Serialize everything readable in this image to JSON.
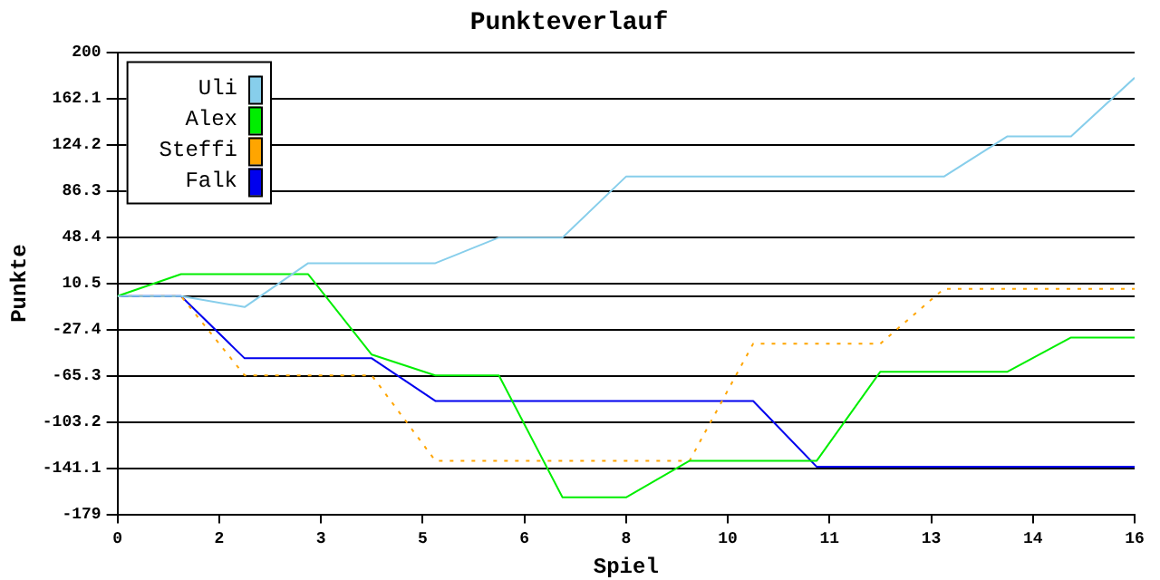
{
  "chart_data": {
    "type": "line",
    "title": "Punkteverlauf",
    "xlabel": "Spiel",
    "ylabel": "Punkte",
    "x": [
      0,
      1,
      2,
      3,
      4,
      5,
      6,
      7,
      8,
      9,
      10,
      11,
      12,
      13,
      14,
      15,
      16
    ],
    "xlim": [
      0,
      16
    ],
    "xticks": [
      0,
      {
        "value": 1.6,
        "label": "2"
      },
      {
        "value": 3.2,
        "label": "3"
      },
      {
        "value": 4.8,
        "label": "5"
      },
      {
        "value": 6.4,
        "label": "6"
      },
      8,
      {
        "value": 9.6,
        "label": "10"
      },
      {
        "value": 11.2,
        "label": "11"
      },
      {
        "value": 12.8,
        "label": "13"
      },
      {
        "value": 14.4,
        "label": "14"
      },
      16
    ],
    "ylim": [
      -179,
      200
    ],
    "yticks": [
      -179,
      -141.1,
      -103.2,
      -65.3,
      -27.4,
      10.5,
      48.4,
      86.3,
      124.2,
      162.1,
      200
    ],
    "grid": "y",
    "legend": "top left",
    "marker": "none",
    "ref_lines": [
      {
        "axis": "y",
        "value": 0,
        "color": "#000000"
      }
    ],
    "series": [
      {
        "name": "Uli",
        "color": "#87ceeb",
        "line_style": "solid",
        "values": [
          0,
          0,
          -9,
          27,
          27,
          27,
          48,
          48,
          98,
          98,
          98,
          98,
          98,
          98,
          131,
          131,
          179
        ]
      },
      {
        "name": "Alex",
        "color": "#00ee00",
        "line_style": "solid",
        "values": [
          0,
          18,
          18,
          18,
          -48,
          -65,
          -65,
          -165,
          -165,
          -135,
          -135,
          -135,
          -62,
          -62,
          -62,
          -34,
          -34
        ]
      },
      {
        "name": "Steffi",
        "color": "#ffa500",
        "line_style": "dotted",
        "values": [
          0,
          0,
          -65,
          -65,
          -65,
          -135,
          -135,
          -135,
          -135,
          -135,
          -39,
          -39,
          -39,
          6,
          6,
          6,
          6
        ]
      },
      {
        "name": "Falk",
        "color": "#0000ee",
        "line_style": "solid",
        "values": [
          0,
          0,
          -51,
          -51,
          -51,
          -86,
          -86,
          -86,
          -86,
          -86,
          -86,
          -140,
          -140,
          -140,
          -140,
          -140,
          -140
        ]
      }
    ]
  }
}
